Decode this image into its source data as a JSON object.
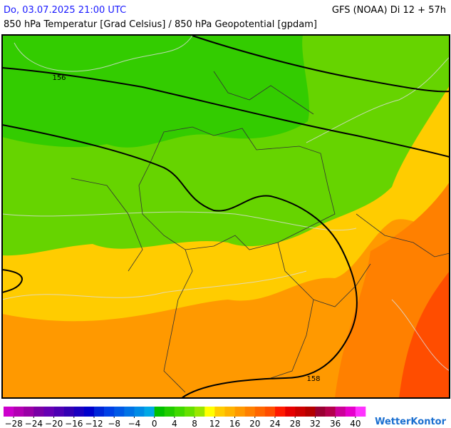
{
  "header": {
    "datetime": "Do, 03.07.2025 21:00 UTC",
    "model": "GFS (NOAA) Di 12 + 57h",
    "parameters": "850 hPa Temperatur [Grad Celsius] / 850 hPa Geopotential [gpdam]"
  },
  "map": {
    "contour_labels": [
      156,
      158
    ]
  },
  "colorbar": {
    "lim": [
      -30,
      42
    ],
    "colors": [
      "#cc00cc",
      "#b300b3",
      "#9900a6",
      "#7a00a6",
      "#6600b3",
      "#4d00b3",
      "#3300b3",
      "#1a00c0",
      "#0000cc",
      "#0026d9",
      "#0040e6",
      "#0059e6",
      "#0073e6",
      "#008ce6",
      "#00a8e6",
      "#00c000",
      "#20cc00",
      "#40d900",
      "#66e000",
      "#99e600",
      "#ffff00",
      "#ffcc00",
      "#ffb300",
      "#ff9900",
      "#ff8000",
      "#ff6600",
      "#ff4d00",
      "#ff1a00",
      "#e60000",
      "#cc0000",
      "#b30000",
      "#990033",
      "#b3004d",
      "#cc0099",
      "#e600cc",
      "#ff33ff"
    ],
    "ticks": [
      {
        "value": -28,
        "label": "−28"
      },
      {
        "value": -24,
        "label": "−24"
      },
      {
        "value": -20,
        "label": "−20"
      },
      {
        "value": -16,
        "label": "−16"
      },
      {
        "value": -12,
        "label": "−12"
      },
      {
        "value": -8,
        "label": "−8"
      },
      {
        "value": -4,
        "label": "−4"
      },
      0,
      4,
      8,
      12,
      16,
      20,
      24,
      28,
      32,
      36,
      40
    ]
  },
  "logo": "WetterKontor"
}
